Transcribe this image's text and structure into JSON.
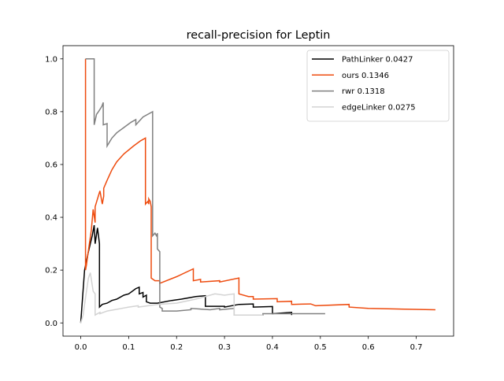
{
  "chart_data": {
    "type": "line",
    "title": "recall-precision for Leptin",
    "xlabel": "",
    "ylabel": "",
    "xlim": [
      -0.037,
      0.778
    ],
    "ylim": [
      -0.05,
      1.05
    ],
    "xticks": [
      0.0,
      0.1,
      0.2,
      0.3,
      0.4,
      0.5,
      0.6,
      0.7
    ],
    "xtick_labels": [
      "0.0",
      "0.1",
      "0.2",
      "0.3",
      "0.4",
      "0.5",
      "0.6",
      "0.7"
    ],
    "yticks": [
      0.0,
      0.2,
      0.4,
      0.6,
      0.8,
      1.0
    ],
    "ytick_labels": [
      "0.0",
      "0.2",
      "0.4",
      "0.6",
      "0.8",
      "1.0"
    ],
    "grid": false,
    "legend_position": "top-right",
    "series": [
      {
        "name": "PathLinker 0.0427",
        "color": "#000000",
        "x": [
          0.0,
          0.008,
          0.016,
          0.024,
          0.028,
          0.03,
          0.035,
          0.039,
          0.039,
          0.045,
          0.055,
          0.065,
          0.075,
          0.09,
          0.1,
          0.115,
          0.122,
          0.122,
          0.13,
          0.13,
          0.137,
          0.137,
          0.145,
          0.16,
          0.19,
          0.21,
          0.24,
          0.26,
          0.26,
          0.3,
          0.3,
          0.33,
          0.36,
          0.36,
          0.4,
          0.4,
          0.44,
          0.44
        ],
        "y": [
          0.0,
          0.2,
          0.27,
          0.33,
          0.37,
          0.3,
          0.36,
          0.3,
          0.06,
          0.07,
          0.075,
          0.085,
          0.09,
          0.105,
          0.11,
          0.13,
          0.135,
          0.11,
          0.115,
          0.098,
          0.105,
          0.08,
          0.075,
          0.075,
          0.085,
          0.09,
          0.1,
          0.103,
          0.063,
          0.063,
          0.06,
          0.07,
          0.072,
          0.06,
          0.062,
          0.035,
          0.04,
          0.03
        ]
      },
      {
        "name": "ours 0.1346",
        "color": "#ee4b0e",
        "x": [
          0.01,
          0.01,
          0.012,
          0.015,
          0.018,
          0.022,
          0.026,
          0.03,
          0.03,
          0.035,
          0.04,
          0.045,
          0.048,
          0.048,
          0.055,
          0.065,
          0.075,
          0.09,
          0.11,
          0.125,
          0.135,
          0.135,
          0.14,
          0.142,
          0.142,
          0.145,
          0.147,
          0.147,
          0.155,
          0.165,
          0.165,
          0.2,
          0.235,
          0.235,
          0.25,
          0.25,
          0.29,
          0.29,
          0.33,
          0.33,
          0.35,
          0.36,
          0.36,
          0.41,
          0.41,
          0.44,
          0.44,
          0.48,
          0.49,
          0.56,
          0.56,
          0.6,
          0.65,
          0.74
        ],
        "y": [
          1.0,
          0.2,
          0.22,
          0.26,
          0.3,
          0.35,
          0.43,
          0.38,
          0.44,
          0.47,
          0.5,
          0.45,
          0.48,
          0.51,
          0.54,
          0.58,
          0.61,
          0.64,
          0.67,
          0.69,
          0.7,
          0.45,
          0.46,
          0.45,
          0.47,
          0.46,
          0.44,
          0.17,
          0.16,
          0.16,
          0.15,
          0.175,
          0.205,
          0.16,
          0.165,
          0.155,
          0.16,
          0.155,
          0.17,
          0.11,
          0.1,
          0.1,
          0.09,
          0.092,
          0.08,
          0.082,
          0.07,
          0.072,
          0.065,
          0.07,
          0.06,
          0.055,
          0.053,
          0.05
        ]
      },
      {
        "name": "rwr 0.1318",
        "color": "#808080",
        "x": [
          0.01,
          0.01,
          0.028,
          0.028,
          0.033,
          0.037,
          0.044,
          0.047,
          0.047,
          0.055,
          0.055,
          0.065,
          0.075,
          0.09,
          0.105,
          0.115,
          0.115,
          0.13,
          0.15,
          0.15,
          0.155,
          0.158,
          0.16,
          0.16,
          0.165,
          0.165,
          0.17,
          0.17,
          0.2,
          0.23,
          0.23,
          0.27,
          0.29,
          0.29,
          0.32,
          0.32,
          0.38,
          0.38,
          0.44,
          0.44,
          0.51
        ],
        "y": [
          1.0,
          1.0,
          1.0,
          0.75,
          0.79,
          0.8,
          0.82,
          0.835,
          0.75,
          0.755,
          0.67,
          0.7,
          0.72,
          0.74,
          0.76,
          0.77,
          0.75,
          0.78,
          0.8,
          0.33,
          0.34,
          0.33,
          0.34,
          0.28,
          0.27,
          0.06,
          0.055,
          0.045,
          0.045,
          0.05,
          0.055,
          0.05,
          0.055,
          0.05,
          0.055,
          0.03,
          0.03,
          0.035,
          0.035,
          0.035,
          0.035
        ]
      },
      {
        "name": "edgeLinker 0.0275",
        "color": "#d3d3d3",
        "x": [
          0.0,
          0.005,
          0.008,
          0.012,
          0.016,
          0.02,
          0.026,
          0.03,
          0.03,
          0.04,
          0.04,
          0.055,
          0.07,
          0.085,
          0.1,
          0.12,
          0.12,
          0.16,
          0.2,
          0.24,
          0.26,
          0.28,
          0.3,
          0.32,
          0.32,
          0.38
        ],
        "y": [
          0.0,
          0.03,
          0.07,
          0.12,
          0.17,
          0.19,
          0.12,
          0.11,
          0.03,
          0.04,
          0.035,
          0.045,
          0.05,
          0.055,
          0.06,
          0.065,
          0.06,
          0.07,
          0.075,
          0.09,
          0.1,
          0.11,
          0.105,
          0.11,
          0.03,
          0.03
        ]
      }
    ]
  }
}
